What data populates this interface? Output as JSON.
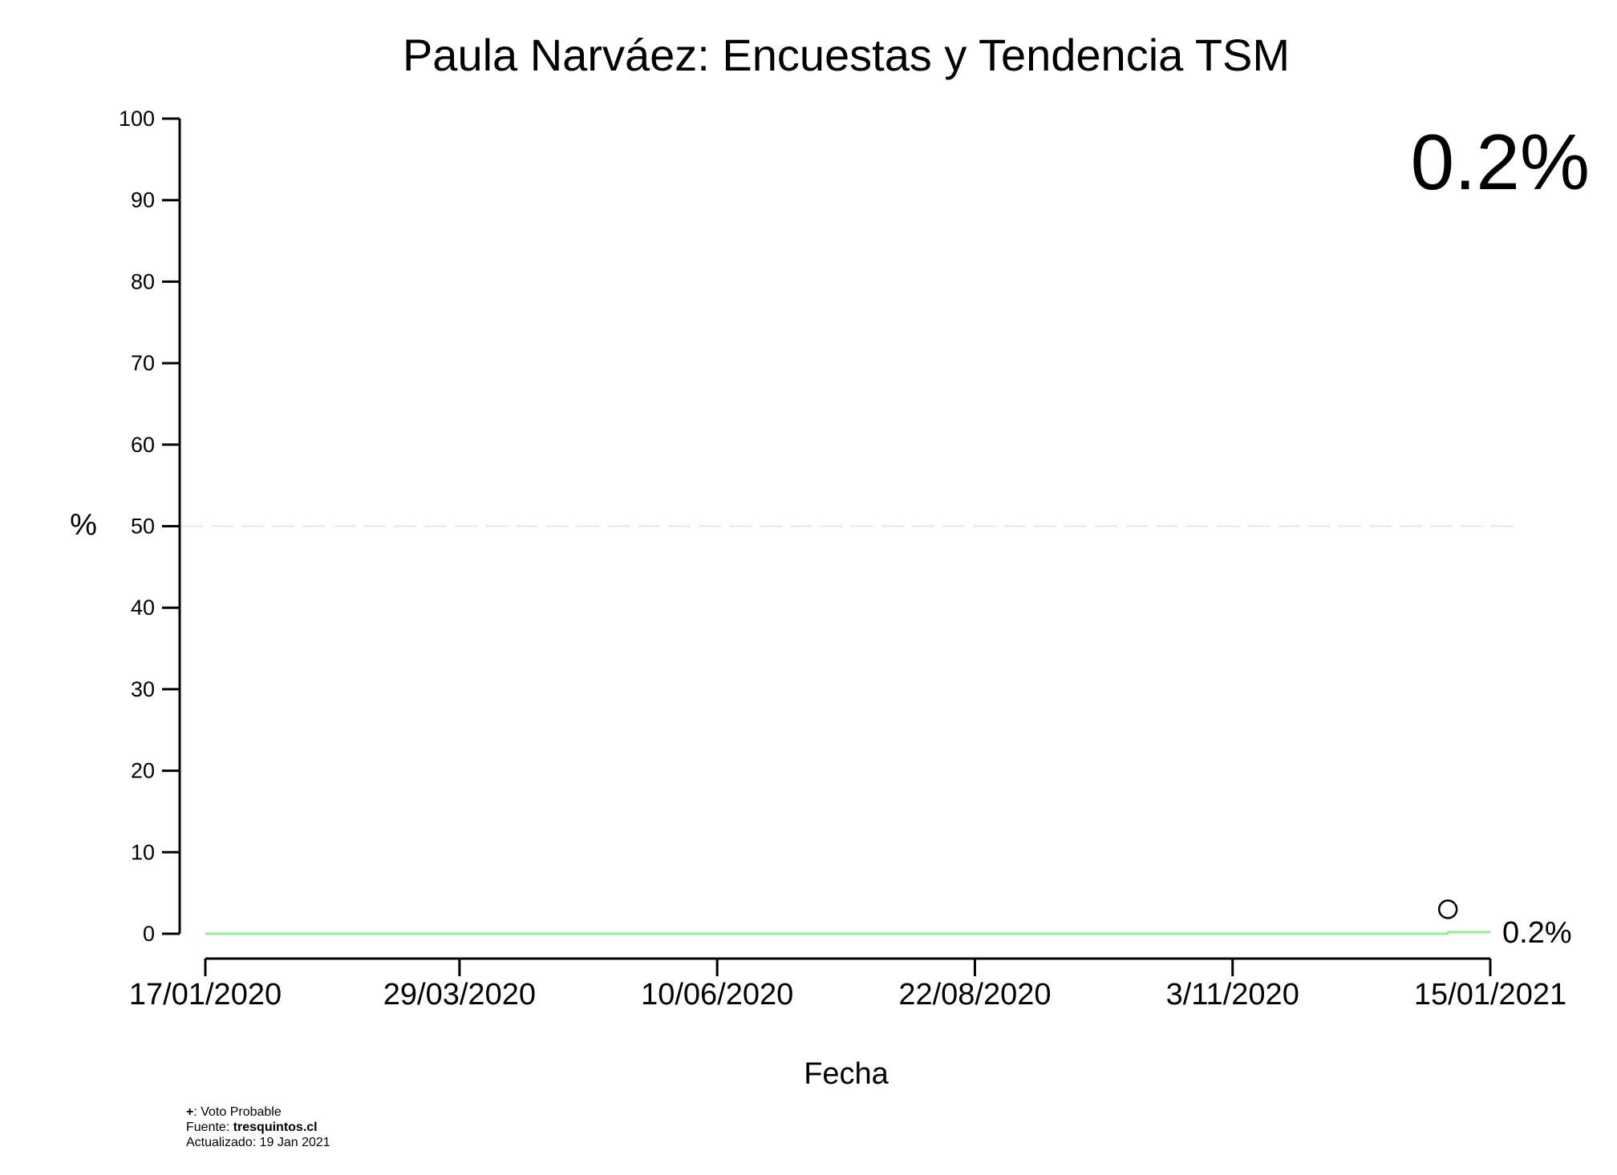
{
  "chart_data": {
    "type": "line",
    "title": "Paula Narváez: Encuestas y Tendencia TSM",
    "xlabel": "Fecha",
    "ylabel": "%",
    "ylim": [
      0,
      100
    ],
    "xlim": [
      "2020-01-17",
      "2021-01-15"
    ],
    "y_ticks": [
      "0",
      "10",
      "20",
      "30",
      "40",
      "50",
      "60",
      "70",
      "80",
      "90",
      "100"
    ],
    "x_ticks": [
      {
        "date": "2020-01-17",
        "label": "17/01/2020"
      },
      {
        "date": "2020-03-29",
        "label": "29/03/2020"
      },
      {
        "date": "2020-06-10",
        "label": "10/06/2020"
      },
      {
        "date": "2020-08-22",
        "label": "22/08/2020"
      },
      {
        "date": "2020-11-03",
        "label": "3/11/2020"
      },
      {
        "date": "2021-01-15",
        "label": "15/01/2021"
      }
    ],
    "reference_line": {
      "y": 50,
      "style": "dashed",
      "color": "#e6e6e6"
    },
    "trend": {
      "color": "#90ee90",
      "x": [
        "2020-01-17",
        "2021-01-03",
        "2021-01-03",
        "2021-01-15"
      ],
      "y": [
        0,
        0,
        0.2,
        0.2
      ]
    },
    "polls": [
      {
        "date": "2021-01-03",
        "value": 3,
        "marker": "circle"
      }
    ],
    "end_label": "0.2%",
    "watermark": {
      "text": "0.2%",
      "color": "#d9d9d9"
    }
  },
  "footnote": {
    "symbol": "+",
    "symbol_text": ": Voto Probable",
    "source_label": "Fuente: ",
    "source_name": "tresquintos.cl",
    "updated": "Actualizado: 19 Jan 2021"
  }
}
